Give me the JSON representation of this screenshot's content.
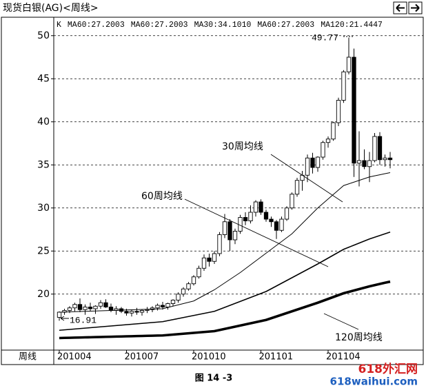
{
  "window_title": "现货白银(AG)<周线>",
  "chart_data": {
    "type": "candlestick",
    "header": [
      "K",
      "MA60:27.2003",
      "MA60:27.2003",
      "MA30:34.1010",
      "MA60:27.2003",
      "MA120:21.4447"
    ],
    "x_label": "周线",
    "categories": [
      "201004",
      null,
      null,
      null,
      null,
      null,
      null,
      null,
      null,
      null,
      null,
      null,
      null,
      "201007",
      null,
      null,
      null,
      null,
      null,
      null,
      null,
      null,
      null,
      null,
      null,
      null,
      "201010",
      null,
      null,
      null,
      null,
      null,
      null,
      null,
      null,
      null,
      null,
      null,
      null,
      "201101",
      null,
      null,
      null,
      null,
      null,
      null,
      null,
      null,
      null,
      null,
      null,
      null,
      "201104",
      null,
      null,
      null,
      null,
      null,
      null,
      null,
      null,
      null,
      null,
      null,
      null
    ],
    "open": [
      17.3,
      17.9,
      18.1,
      18.4,
      18.8,
      18.2,
      18.5,
      18.3,
      18.6,
      19.0,
      18.5,
      18.1,
      18.3,
      18.0,
      17.8,
      18.0,
      17.9,
      18.1,
      18.2,
      18.4,
      18.7,
      18.5,
      18.9,
      19.3,
      20.0,
      20.6,
      21.2,
      22.0,
      23.0,
      24.2,
      23.8,
      24.7,
      26.9,
      28.4,
      26.3,
      27.3,
      28.9,
      28.5,
      29.5,
      30.7,
      29.5,
      28.7,
      28.4,
      27.4,
      28.7,
      30.0,
      31.6,
      33.2,
      33.8,
      35.8,
      34.7,
      35.9,
      37.6,
      38.0,
      39.9,
      42.5,
      45.8,
      47.5,
      35.2,
      35.5,
      34.8,
      35.5,
      38.3,
      35.6,
      35.8
    ],
    "high": [
      18.0,
      18.3,
      18.6,
      19.0,
      19.5,
      18.8,
      19.0,
      18.7,
      19.3,
      19.4,
      18.9,
      18.6,
      18.5,
      18.3,
      18.2,
      18.4,
      18.2,
      18.5,
      18.6,
      18.9,
      19.1,
      19.0,
      19.4,
      20.2,
      20.8,
      21.4,
      22.2,
      23.3,
      24.6,
      24.7,
      25.0,
      27.2,
      29.3,
      28.7,
      27.6,
      29.2,
      29.5,
      30.3,
      30.9,
      31.0,
      29.8,
      29.0,
      28.6,
      29.0,
      30.2,
      31.8,
      33.5,
      34.3,
      36.2,
      36.4,
      36.0,
      37.8,
      38.3,
      40.0,
      42.8,
      46.0,
      49.77,
      48.5,
      38.9,
      36.8,
      36.5,
      38.7,
      38.8,
      36.2,
      36.5
    ],
    "low": [
      16.91,
      17.6,
      17.8,
      18.0,
      17.9,
      17.6,
      18.0,
      17.7,
      18.3,
      18.4,
      17.9,
      17.6,
      17.8,
      17.5,
      17.4,
      17.6,
      17.5,
      17.8,
      17.9,
      18.1,
      18.2,
      18.2,
      18.6,
      19.0,
      19.7,
      20.4,
      21.0,
      21.8,
      22.7,
      23.2,
      23.5,
      24.4,
      26.5,
      25.0,
      25.8,
      27.0,
      28.0,
      28.2,
      29.0,
      29.2,
      28.4,
      27.8,
      26.4,
      27.2,
      28.5,
      29.8,
      31.3,
      32.0,
      33.0,
      34.0,
      34.2,
      35.6,
      37.0,
      37.8,
      39.5,
      42.2,
      45.5,
      33.6,
      32.5,
      34.5,
      33.0,
      35.3,
      35.0,
      34.8,
      34.6
    ],
    "close": [
      17.9,
      18.1,
      18.4,
      18.8,
      18.2,
      18.5,
      18.3,
      18.6,
      19.0,
      18.5,
      18.1,
      18.3,
      18.0,
      17.8,
      18.0,
      17.9,
      18.1,
      18.2,
      18.4,
      18.7,
      18.5,
      18.9,
      19.3,
      20.0,
      20.6,
      21.2,
      22.0,
      23.0,
      24.2,
      23.8,
      24.7,
      26.9,
      28.4,
      26.3,
      27.3,
      28.9,
      28.5,
      29.5,
      30.7,
      29.5,
      28.7,
      28.4,
      27.4,
      28.7,
      30.0,
      31.6,
      33.2,
      33.8,
      35.8,
      34.7,
      35.9,
      37.6,
      38.0,
      39.9,
      42.5,
      45.8,
      47.5,
      35.2,
      35.5,
      34.8,
      35.5,
      38.3,
      35.6,
      35.8,
      35.6
    ],
    "series": [
      {
        "name": "30周均线",
        "color": "#000000",
        "values": [
          17.9,
          17.92,
          17.94,
          17.96,
          17.98,
          18.0,
          18.02,
          18.04,
          18.06,
          18.08,
          18.1,
          18.12,
          18.14,
          18.16,
          18.18,
          18.2,
          18.22,
          18.24,
          18.26,
          18.28,
          18.3,
          18.45,
          18.6,
          18.75,
          18.9,
          19.05,
          19.2,
          19.53,
          19.85,
          20.18,
          20.5,
          20.9,
          21.3,
          21.7,
          22.1,
          22.5,
          22.95,
          23.4,
          23.85,
          24.3,
          24.75,
          25.2,
          25.65,
          26.1,
          26.55,
          27.0,
          27.6,
          28.2,
          28.8,
          29.4,
          30.0,
          30.52,
          31.04,
          31.56,
          32.08,
          32.6,
          32.8,
          33.0,
          33.2,
          33.4,
          33.6,
          33.73,
          33.85,
          33.98,
          34.101
        ]
      },
      {
        "name": "60周均线",
        "color": "#000000",
        "values": [
          15.8,
          15.85,
          15.9,
          15.95,
          16.0,
          16.05,
          16.1,
          16.15,
          16.2,
          16.25,
          16.3,
          16.35,
          16.4,
          16.45,
          16.5,
          16.55,
          16.6,
          16.65,
          16.7,
          16.75,
          16.8,
          16.92,
          17.04,
          17.16,
          17.28,
          17.4,
          17.52,
          17.64,
          17.76,
          17.88,
          18.0,
          18.23,
          18.46,
          18.69,
          18.92,
          19.15,
          19.38,
          19.61,
          19.84,
          20.07,
          20.3,
          20.62,
          20.94,
          21.26,
          21.58,
          21.9,
          22.22,
          22.54,
          22.86,
          23.18,
          23.5,
          23.84,
          24.18,
          24.52,
          24.86,
          25.2,
          25.44,
          25.68,
          25.92,
          26.16,
          26.4,
          26.6,
          26.8,
          27.0,
          27.2003
        ]
      },
      {
        "name": "120周均线",
        "color": "#000000",
        "values": [
          14.9,
          14.92,
          14.93,
          14.95,
          14.96,
          14.98,
          14.99,
          15.01,
          15.02,
          15.04,
          15.05,
          15.07,
          15.08,
          15.1,
          15.11,
          15.13,
          15.14,
          15.16,
          15.17,
          15.19,
          15.2,
          15.25,
          15.3,
          15.35,
          15.4,
          15.45,
          15.5,
          15.55,
          15.6,
          15.65,
          15.7,
          15.83,
          15.96,
          16.09,
          16.22,
          16.35,
          16.48,
          16.61,
          16.74,
          16.87,
          17.0,
          17.2,
          17.4,
          17.6,
          17.8,
          18.0,
          18.2,
          18.4,
          18.6,
          18.8,
          19.0,
          19.22,
          19.44,
          19.66,
          19.88,
          20.1,
          20.26,
          20.42,
          20.58,
          20.74,
          20.9,
          21.04,
          21.18,
          21.32,
          21.4447
        ]
      }
    ],
    "annotations": [
      "49.77",
      "16.91"
    ],
    "ylim": [
      13.5,
      51.9
    ],
    "yticks": [
      20,
      25,
      30,
      35,
      40,
      45,
      50
    ],
    "grid": true,
    "up_color": "#ffffff",
    "down_color": "#000000"
  },
  "caption": "图 14 -3",
  "watermark": [
    "618外汇网",
    "618waihui.com"
  ]
}
